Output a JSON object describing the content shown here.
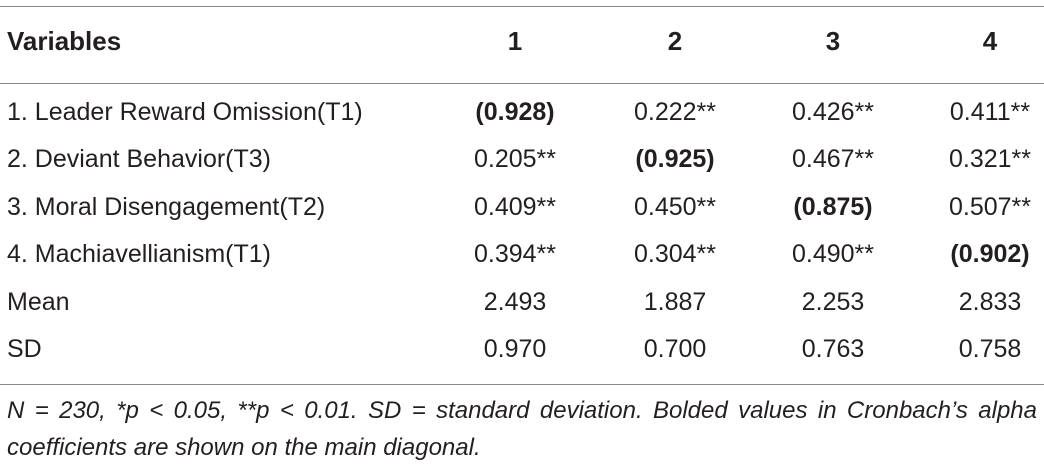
{
  "table": {
    "headers": [
      "Variables",
      "1",
      "2",
      "3",
      "4"
    ],
    "rows": [
      {
        "label": "1. Leader Reward Omission(T1)",
        "values": [
          "(0.928)",
          "0.222**",
          "0.426**",
          "0.411**"
        ],
        "bold_index": 0
      },
      {
        "label": "2. Deviant Behavior(T3)",
        "values": [
          "0.205**",
          "(0.925)",
          "0.467**",
          "0.321**"
        ],
        "bold_index": 1
      },
      {
        "label": "3. Moral Disengagement(T2)",
        "values": [
          "0.409**",
          "0.450**",
          "(0.875)",
          "0.507**"
        ],
        "bold_index": 2
      },
      {
        "label": "4. Machiavellianism(T1)",
        "values": [
          "0.394**",
          "0.304**",
          "0.490**",
          "(0.902)"
        ],
        "bold_index": 3
      },
      {
        "label": "Mean",
        "values": [
          "2.493",
          "1.887",
          "2.253",
          "2.833"
        ],
        "bold_index": null
      },
      {
        "label": "SD",
        "values": [
          "0.970",
          "0.700",
          "0.763",
          "0.758"
        ],
        "bold_index": null
      }
    ]
  },
  "footnote": "N = 230, *p < 0.05, **p < 0.01. SD = standard deviation. Bolded values in Cronbach’s alpha coefficients are shown on the main diagonal."
}
